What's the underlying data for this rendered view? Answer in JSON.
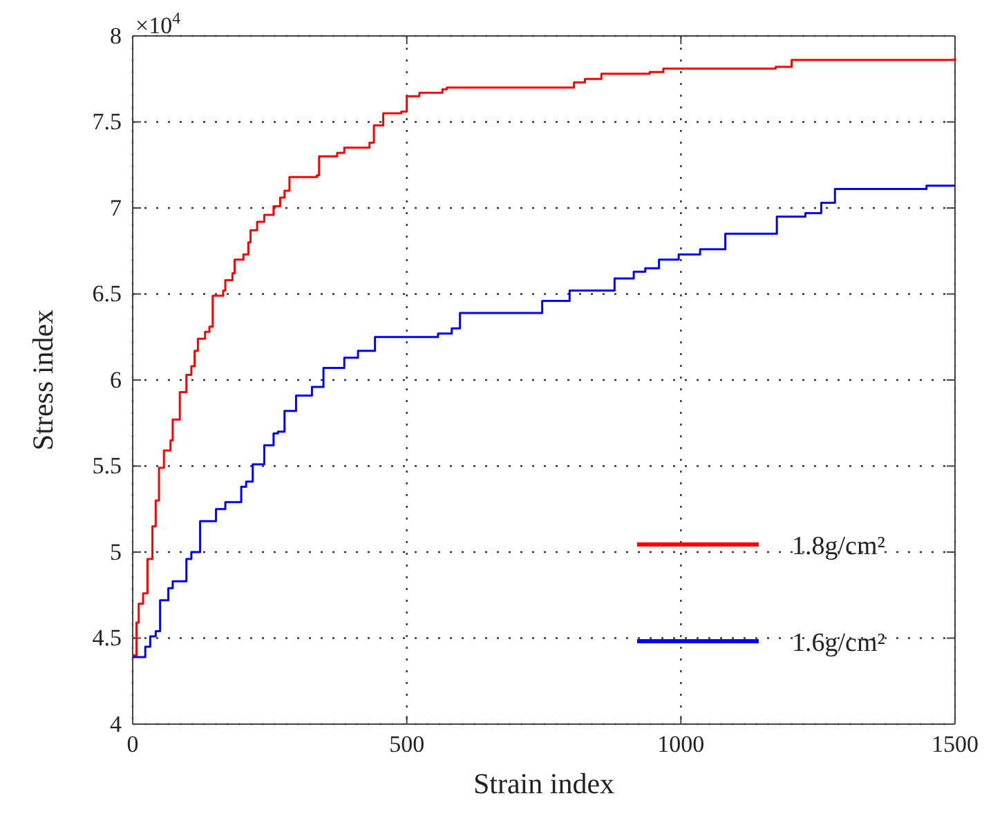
{
  "chart_data": {
    "type": "step",
    "xlabel": "Strain index",
    "ylabel": "Stress index",
    "annotations": [
      "×10$^{4}$"
    ],
    "xlim": [
      0,
      1500
    ],
    "xticks": [
      0,
      500,
      1000,
      1500
    ],
    "ylim": [
      4,
      8
    ],
    "yticks": [
      4,
      4.5,
      5,
      5.5,
      6,
      6.5,
      7,
      7.5,
      8
    ],
    "grid": true,
    "legend": "bottom right",
    "line_style": "solid",
    "marker": "none",
    "series": [
      {
        "name": "1.8g/cm²",
        "color": "#ff0000",
        "x": [
          0,
          7,
          11,
          19,
          27,
          36,
          42,
          48,
          57,
          69,
          73,
          86,
          98,
          107,
          113,
          119,
          132,
          140,
          146,
          165,
          169,
          182,
          186,
          202,
          211,
          215,
          227,
          240,
          257,
          269,
          277,
          286,
          336,
          340,
          373,
          386,
          432,
          440,
          457,
          490,
          500,
          523,
          565,
          573,
          805,
          825,
          855,
          943,
          968,
          1173,
          1202,
          1500
        ],
        "values": [
          4.4,
          4.59,
          4.7,
          4.76,
          4.96,
          5.15,
          5.3,
          5.49,
          5.59,
          5.65,
          5.77,
          5.93,
          6.03,
          6.08,
          6.17,
          6.24,
          6.28,
          6.31,
          6.49,
          6.52,
          6.58,
          6.62,
          6.7,
          6.73,
          6.8,
          6.87,
          6.92,
          6.96,
          7.01,
          7.06,
          7.1,
          7.18,
          7.19,
          7.3,
          7.32,
          7.35,
          7.38,
          7.48,
          7.55,
          7.56,
          7.65,
          7.67,
          7.69,
          7.7,
          7.73,
          7.75,
          7.78,
          7.79,
          7.81,
          7.82,
          7.86,
          7.87
        ]
      },
      {
        "name": "1.6g/cm²",
        "color": "#0000ff",
        "x": [
          0,
          23,
          32,
          42,
          50,
          65,
          73,
          98,
          107,
          123,
          152,
          169,
          198,
          207,
          219,
          240,
          257,
          265,
          277,
          298,
          327,
          348,
          386,
          411,
          442,
          557,
          582,
          597,
          747,
          797,
          879,
          914,
          935,
          960,
          996,
          1035,
          1081,
          1175,
          1227,
          1256,
          1281,
          1448,
          1500
        ],
        "values": [
          4.39,
          4.45,
          4.51,
          4.54,
          4.72,
          4.79,
          4.83,
          4.96,
          5.0,
          5.18,
          5.25,
          5.29,
          5.38,
          5.41,
          5.51,
          5.62,
          5.69,
          5.7,
          5.82,
          5.91,
          5.96,
          6.07,
          6.13,
          6.17,
          6.25,
          6.27,
          6.3,
          6.39,
          6.46,
          6.52,
          6.59,
          6.63,
          6.65,
          6.7,
          6.73,
          6.76,
          6.85,
          6.95,
          6.97,
          7.03,
          7.11,
          7.13,
          7.13
        ]
      }
    ]
  }
}
